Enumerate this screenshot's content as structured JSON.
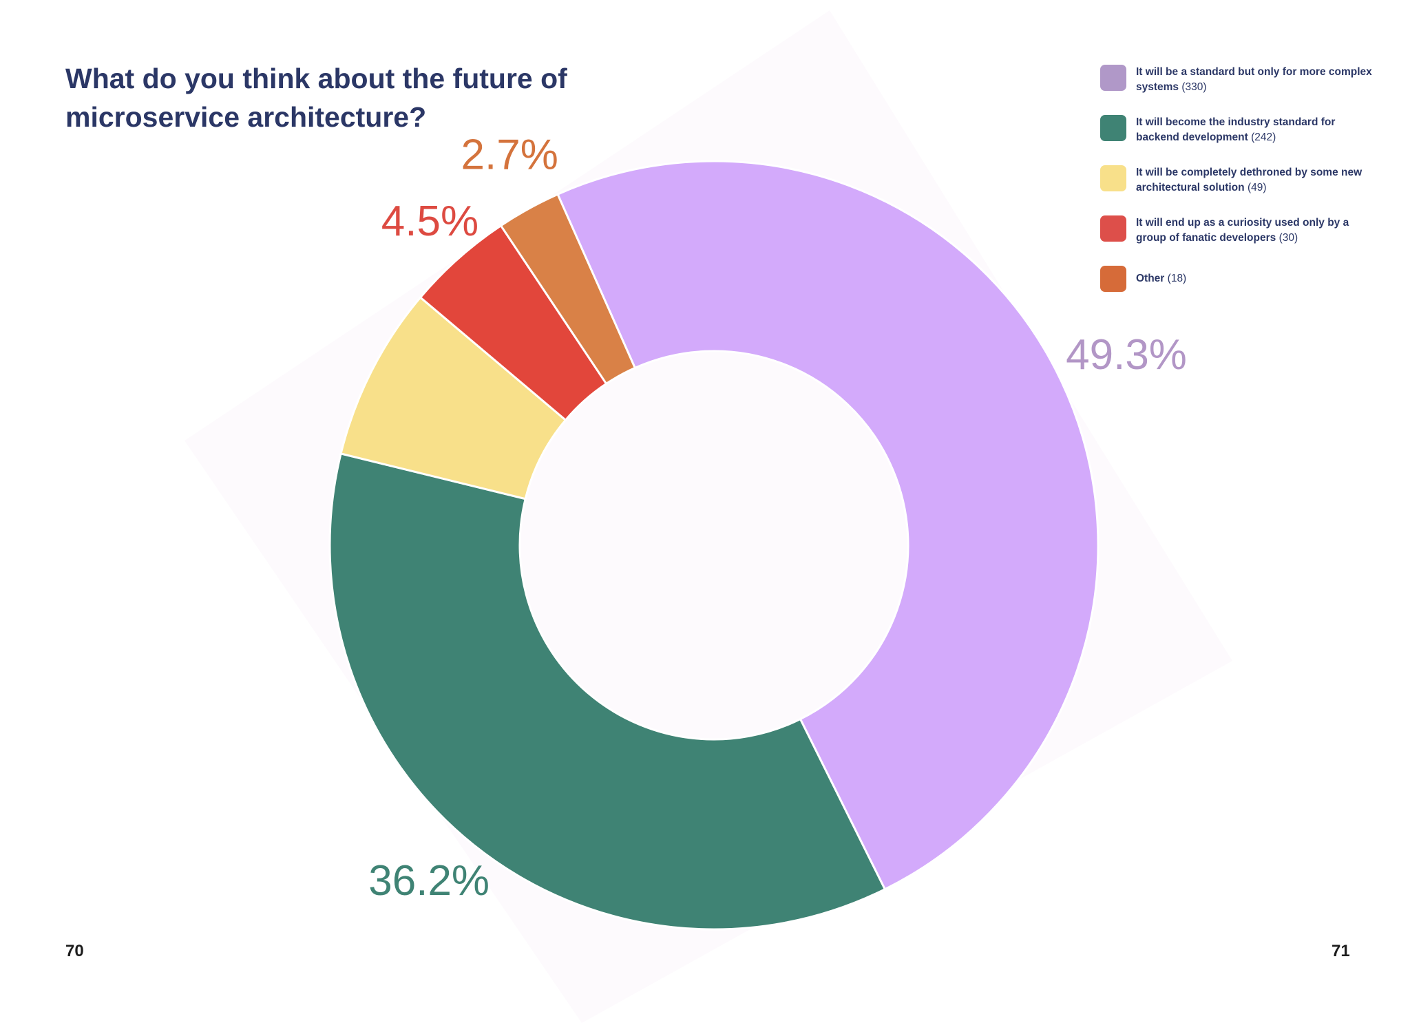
{
  "chart_data": {
    "type": "pie",
    "title": "What do you think about the future of microservice architecture?",
    "slices": [
      {
        "label": "It will be a standard but only for more complex systems",
        "count": 330,
        "percent": 49.3,
        "percent_label": "49.3%",
        "color": "#d3aafb",
        "label_color": "#b296c6",
        "legend_color": "#b098c8"
      },
      {
        "label": "It will become the industry standard for backend development",
        "count": 242,
        "percent": 36.2,
        "percent_label": "36.2%",
        "color": "#3f8374",
        "label_color": "#3f8374",
        "legend_color": "#3f8374"
      },
      {
        "label": "It will be completely dethroned by some new architectural solution",
        "count": 49,
        "percent": 7.3,
        "percent_label": "",
        "color": "#f8e08a",
        "label_color": "#e6c85a",
        "legend_color": "#f8e08a"
      },
      {
        "label": "It will end up as a curiosity used only by a group of fanatic developers",
        "count": 30,
        "percent": 4.5,
        "percent_label": "4.5%",
        "color": "#e2463b",
        "label_color": "#dd4a41",
        "legend_color": "#dd4f4a"
      },
      {
        "label": "Other",
        "count": 18,
        "percent": 2.7,
        "percent_label": "2.7%",
        "color": "#d98147",
        "label_color": "#d4733c",
        "legend_color": "#d66b39"
      }
    ],
    "legend_placement": "top-right"
  },
  "legend_counts": [
    "(330)",
    "(242)",
    "(49)",
    "(30)",
    "(18)"
  ],
  "pages": {
    "left": "70",
    "right": "71"
  },
  "colors": {
    "title": "#2b3766",
    "background_shape": "#fdfafd"
  }
}
